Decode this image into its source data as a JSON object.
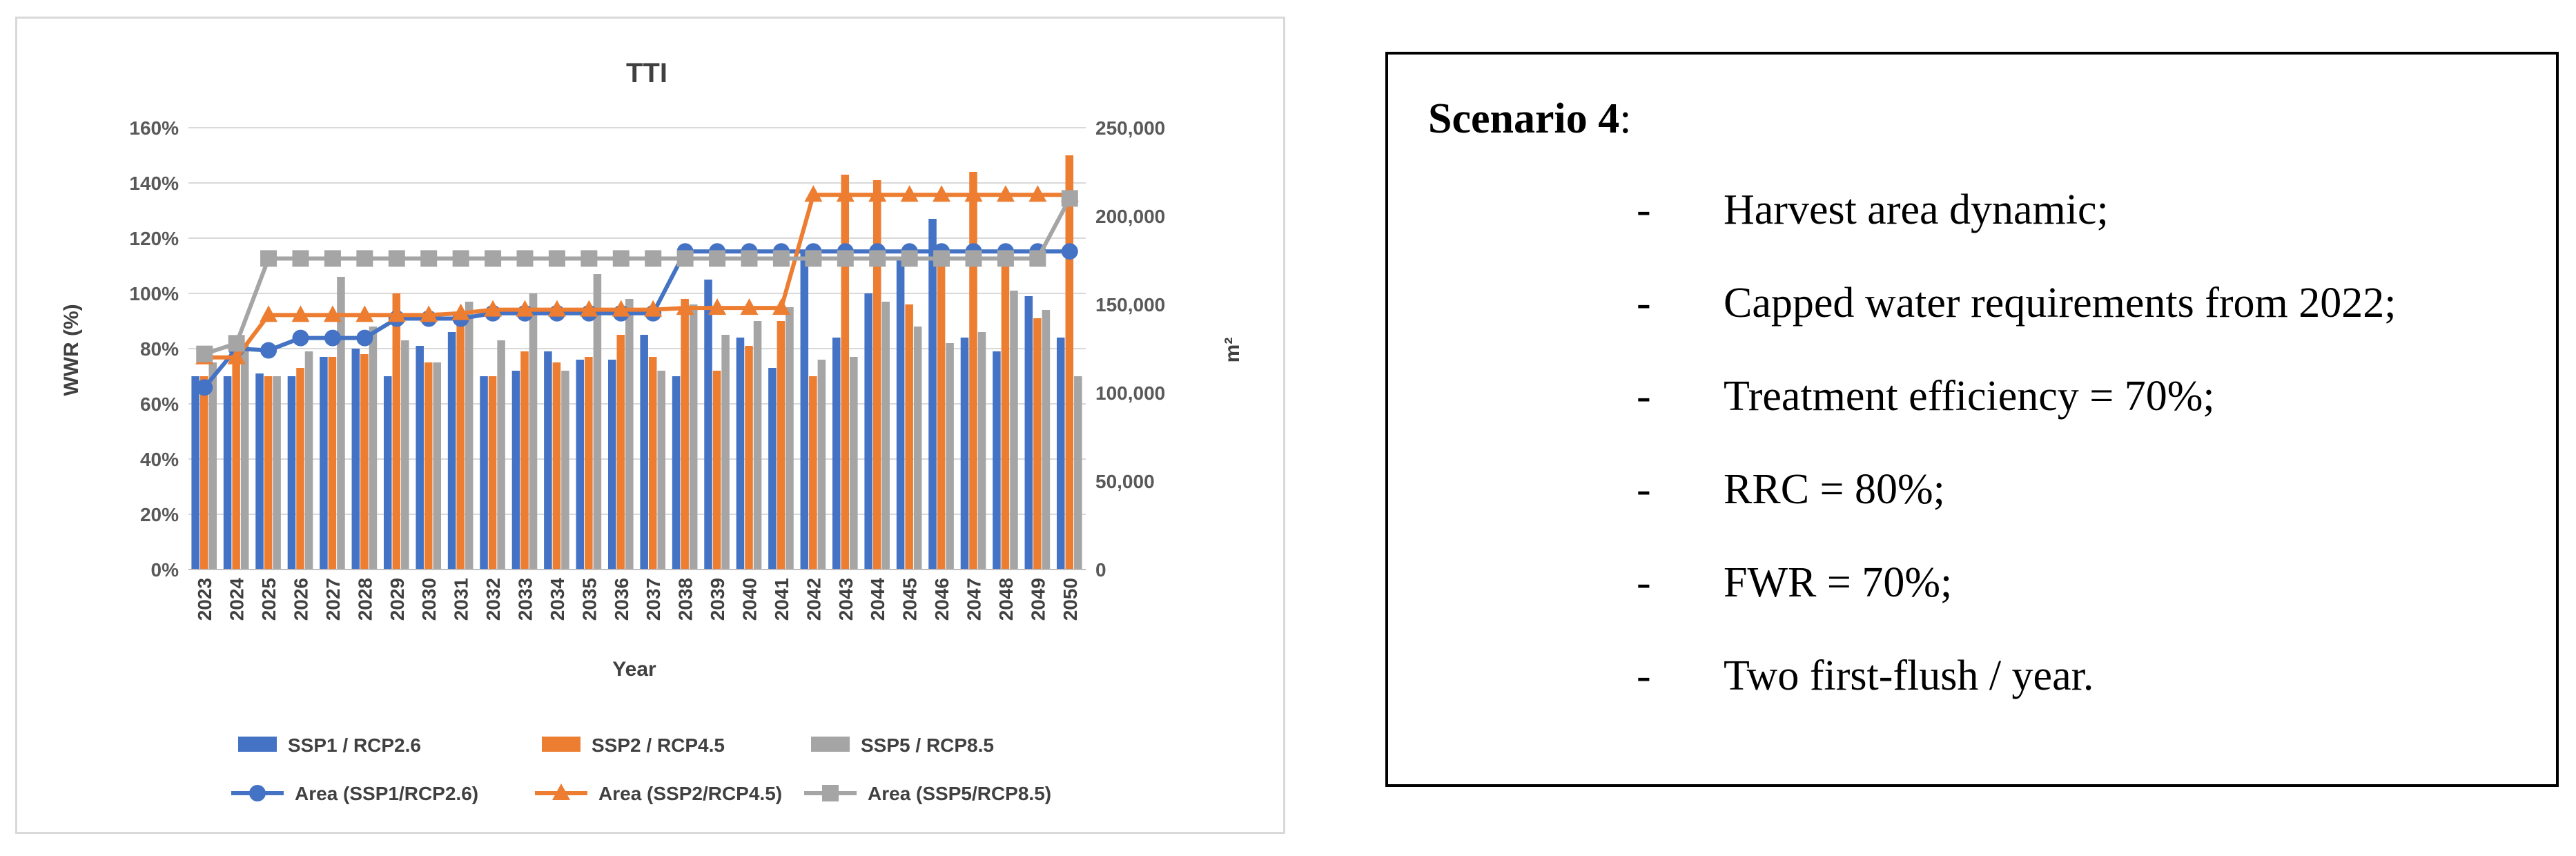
{
  "chart_data": {
    "type": "bar+line",
    "title": "TTI",
    "xlabel": "Year",
    "ylabel_left": "WWR (%)",
    "ylabel_right": "m²",
    "ylim_left": [
      0,
      160
    ],
    "ylim_right": [
      0,
      250000
    ],
    "y_ticks_left": [
      "0%",
      "20%",
      "40%",
      "60%",
      "80%",
      "100%",
      "120%",
      "140%",
      "160%"
    ],
    "y_ticks_right": [
      "0",
      "50,000",
      "100,000",
      "150,000",
      "200,000",
      "250,000"
    ],
    "categories": [
      "2023",
      "2024",
      "2025",
      "2026",
      "2027",
      "2028",
      "2029",
      "2030",
      "2031",
      "2032",
      "2033",
      "2034",
      "2035",
      "2036",
      "2037",
      "2038",
      "2039",
      "2040",
      "2041",
      "2042",
      "2043",
      "2044",
      "2045",
      "2046",
      "2047",
      "2048",
      "2049",
      "2050"
    ],
    "legend_position": "bottom",
    "grid": true,
    "bar_series": [
      {
        "name": "SSP1 / RCP2.6",
        "color": "#4472C4",
        "values": [
          70,
          70,
          71,
          70,
          77,
          80,
          70,
          81,
          86,
          70,
          72,
          79,
          76,
          76,
          85,
          70,
          105,
          84,
          73,
          115,
          84,
          100,
          112,
          127,
          84,
          79,
          99,
          84
        ]
      },
      {
        "name": "SSP2 / RCP4.5",
        "color": "#ED7D31",
        "values": [
          70,
          76,
          70,
          73,
          77,
          78,
          100,
          75,
          92,
          70,
          79,
          75,
          77,
          85,
          77,
          98,
          72,
          81,
          90,
          70,
          143,
          141,
          96,
          111,
          144,
          112,
          91,
          150
        ]
      },
      {
        "name": "SSP5 / RCP8.5",
        "color": "#A5A5A5",
        "values": [
          75,
          82,
          70,
          79,
          106,
          88,
          83,
          75,
          97,
          83,
          100,
          72,
          107,
          98,
          72,
          96,
          85,
          90,
          95,
          76,
          77,
          97,
          88,
          82,
          86,
          101,
          94,
          70
        ]
      }
    ],
    "line_series": [
      {
        "name": "Area (SSP1/RCP2.6)",
        "color": "#4472C4",
        "marker": "circle",
        "values": [
          103000,
          125000,
          124000,
          131000,
          131000,
          131000,
          142000,
          142000,
          142000,
          145000,
          145000,
          145000,
          145000,
          145000,
          145000,
          180000,
          180000,
          180000,
          180000,
          180000,
          180000,
          180000,
          180000,
          180000,
          180000,
          180000,
          180000,
          180000
        ]
      },
      {
        "name": "Area (SSP2/RCP4.5)",
        "color": "#ED7D31",
        "marker": "triangle",
        "values": [
          120000,
          120000,
          144000,
          144000,
          144000,
          144000,
          144000,
          144000,
          145000,
          147000,
          147000,
          147000,
          147000,
          147000,
          147000,
          148000,
          148000,
          148000,
          148000,
          212000,
          212000,
          212000,
          212000,
          212000,
          212000,
          212000,
          212000,
          212000
        ]
      },
      {
        "name": "Area (SSP5/RCP8.5)",
        "color": "#A5A5A5",
        "marker": "square",
        "values": [
          122000,
          128000,
          176000,
          176000,
          176000,
          176000,
          176000,
          176000,
          176000,
          176000,
          176000,
          176000,
          176000,
          176000,
          176000,
          176000,
          176000,
          176000,
          176000,
          176000,
          176000,
          176000,
          176000,
          176000,
          176000,
          176000,
          176000,
          210000
        ]
      }
    ]
  },
  "scenario": {
    "heading_bold": "Scenario 4",
    "heading_suffix": ":",
    "dash": "-",
    "items": [
      "Harvest area dynamic;",
      "Capped water requirements from 2022;",
      "Treatment efficiency = 70%;",
      "RRC = 80%;",
      "FWR = 70%;",
      "Two first-flush / year."
    ]
  }
}
